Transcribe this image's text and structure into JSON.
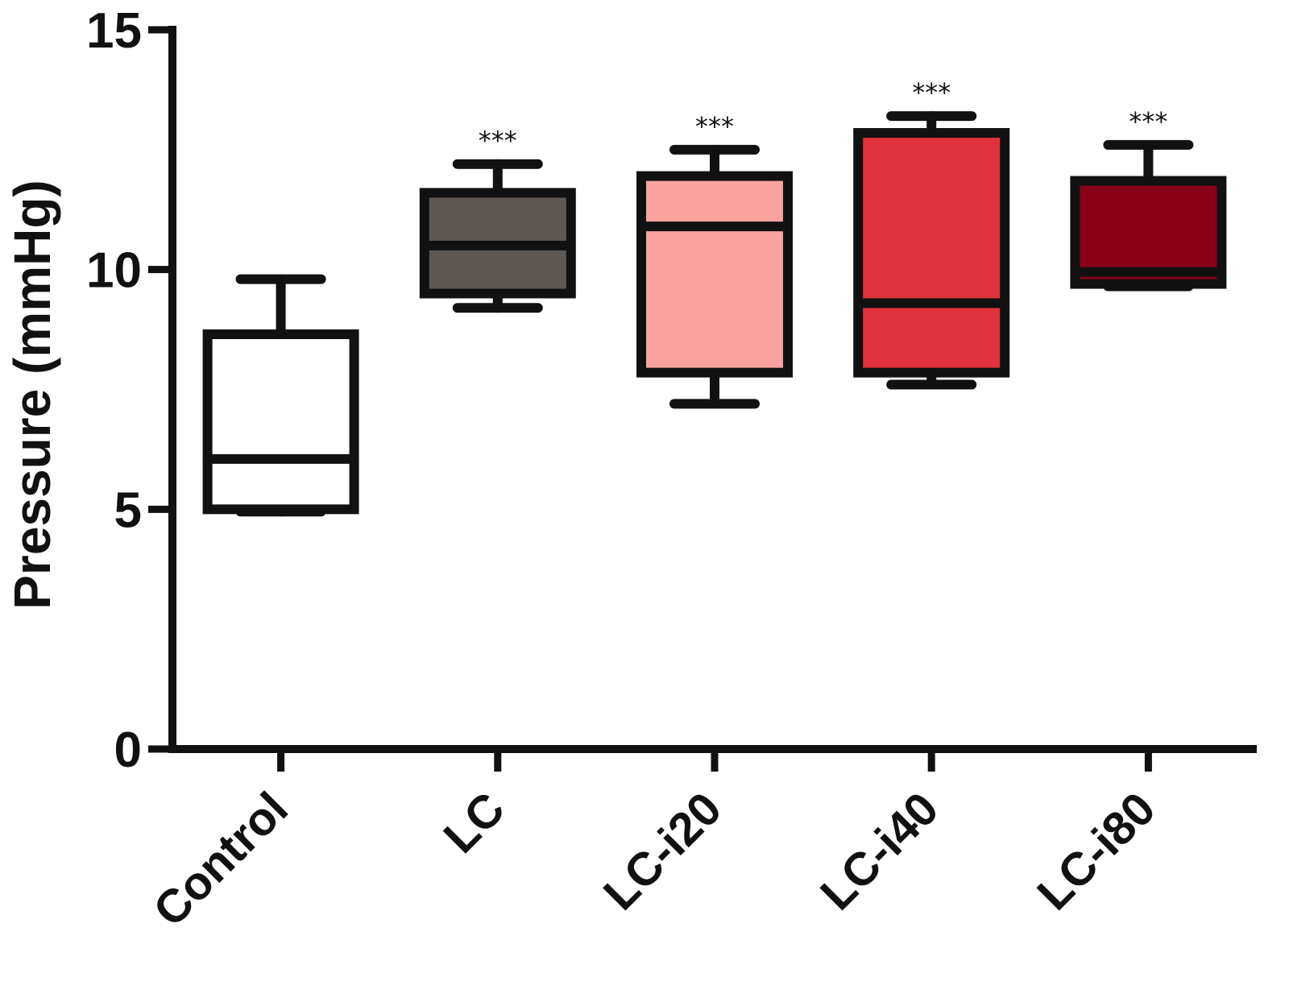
{
  "chart_data": {
    "type": "box",
    "title": "",
    "xlabel": "",
    "ylabel": "Pressure (mmHg)",
    "ylim": [
      0,
      15
    ],
    "yticks": [
      "0",
      "5",
      "10",
      "15"
    ],
    "grid": false,
    "categories": [
      "Control",
      "LC",
      "LC-i20",
      "LC-i40",
      "LC-i80"
    ],
    "boxes": [
      {
        "category": "Control",
        "min": 4.95,
        "q1": 5.0,
        "median": 6.05,
        "q3": 8.65,
        "max": 9.8,
        "fill": "#ffffff",
        "annotation": ""
      },
      {
        "category": "LC",
        "min": 9.2,
        "q1": 9.5,
        "median": 10.5,
        "q3": 11.6,
        "max": 12.2,
        "fill": "#5e5855",
        "annotation": "***"
      },
      {
        "category": "LC-i20",
        "min": 7.2,
        "q1": 7.85,
        "median": 10.9,
        "q3": 11.95,
        "max": 12.5,
        "fill": "#f8a3a0",
        "annotation": "***"
      },
      {
        "category": "LC-i40",
        "min": 7.6,
        "q1": 7.85,
        "median": 9.3,
        "q3": 12.85,
        "max": 13.2,
        "fill": "#e0323c",
        "annotation": "***"
      },
      {
        "category": "LC-i80",
        "min": 9.65,
        "q1": 9.7,
        "median": 9.95,
        "q3": 11.85,
        "max": 12.6,
        "fill": "#8b0019",
        "annotation": "***"
      }
    ]
  }
}
